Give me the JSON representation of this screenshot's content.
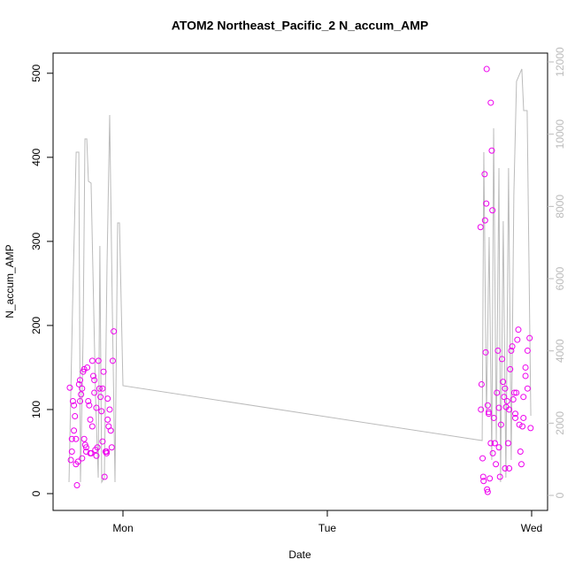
{
  "chart_data": {
    "type": "scatter",
    "title": "ATOM2 Northeast_Pacific_2 N_accum_AMP",
    "x_label": "Date",
    "y_label": "N_accum_AMP",
    "xlim": [
      0.658,
      3.078
    ],
    "xticks": [
      {
        "value": 1,
        "label": "Mon"
      },
      {
        "value": 2,
        "label": "Tue"
      },
      {
        "value": 3,
        "label": "Wed"
      }
    ],
    "ylim": [
      -20,
      524
    ],
    "yticks": [
      0,
      100,
      200,
      300,
      400,
      500
    ],
    "y2lim": [
      -416,
      12245
    ],
    "y2ticks": [
      0,
      2000,
      4000,
      6000,
      8000,
      10000,
      12000
    ],
    "y2_color": "#bbbbbb",
    "series": [
      {
        "type": "scatter",
        "color": "#ee00ee",
        "x": [
          0.74,
          0.745,
          0.75,
          0.75,
          0.755,
          0.76,
          0.765,
          0.77,
          0.775,
          0.78,
          0.785,
          0.79,
          0.795,
          0.8,
          0.805,
          0.81,
          0.815,
          0.82,
          0.825,
          0.83,
          0.835,
          0.84,
          0.845,
          0.85,
          0.855,
          0.86,
          0.865,
          0.87,
          0.875,
          0.88,
          0.885,
          0.89,
          0.895,
          0.9,
          0.905,
          0.91,
          0.915,
          0.92,
          0.925,
          0.93,
          0.935,
          0.94,
          0.945,
          0.95,
          0.955,
          0.79,
          0.76,
          0.8,
          0.84,
          0.86,
          0.87,
          0.9,
          0.92,
          0.925,
          0.85,
          0.82,
          0.77,
          0.81,
          2.75,
          2.752,
          2.755,
          2.76,
          2.763,
          2.765,
          2.77,
          2.772,
          2.775,
          2.778,
          2.78,
          2.782,
          2.785,
          2.79,
          2.795,
          2.8,
          2.805,
          2.808,
          2.81,
          2.815,
          2.82,
          2.825,
          2.83,
          2.835,
          2.84,
          2.845,
          2.85,
          2.855,
          2.86,
          2.865,
          2.87,
          2.875,
          2.88,
          2.885,
          2.89,
          2.895,
          2.9,
          2.905,
          2.91,
          2.915,
          2.92,
          2.925,
          2.93,
          2.935,
          2.94,
          2.945,
          2.95,
          2.955,
          2.96,
          2.97,
          2.98,
          2.99,
          2.995,
          2.98,
          2.97,
          2.785,
          2.79,
          2.8,
          2.84,
          2.87,
          2.89,
          2.92,
          2.96
        ],
        "values": [
          126,
          40,
          65,
          50,
          110,
          105,
          92,
          35,
          10,
          38,
          130,
          135,
          118,
          125,
          145,
          65,
          58,
          55,
          150,
          110,
          105,
          88,
          48,
          158,
          140,
          120,
          52,
          45,
          55,
          158,
          125,
          115,
          98,
          62,
          145,
          20,
          50,
          48,
          88,
          80,
          100,
          75,
          55,
          158,
          193,
          110,
          75,
          42,
          48,
          135,
          102,
          125,
          50,
          113,
          80,
          50,
          65,
          148,
          317,
          100,
          130,
          42,
          20,
          15,
          380,
          325,
          168,
          345,
          505,
          5,
          2,
          95,
          18,
          465,
          408,
          337,
          48,
          90,
          60,
          35,
          120,
          170,
          102,
          20,
          82,
          160,
          133,
          115,
          125,
          103,
          110,
          60,
          30,
          148,
          170,
          175,
          112,
          120,
          90,
          120,
          183,
          195,
          82,
          50,
          35,
          80,
          115,
          140,
          125,
          185,
          78,
          170,
          150,
          105,
          97,
          60,
          55,
          30,
          100,
          95,
          90
        ]
      },
      {
        "type": "line",
        "axis": "y2",
        "color": "#bbbbbb",
        "x": [
          0.736,
          0.753,
          0.771,
          0.784,
          0.792,
          0.805,
          0.814,
          0.823,
          0.831,
          0.844,
          0.866,
          0.879,
          0.887,
          0.896,
          0.909,
          0.922,
          0.935,
          0.948,
          0.961,
          0.974,
          0.983,
          1.0,
          2.758,
          2.766,
          2.779,
          2.792,
          2.805,
          2.814,
          2.827,
          2.84,
          2.848,
          2.861,
          2.874,
          2.887,
          2.9,
          2.913,
          2.926,
          2.952,
          2.961,
          2.978,
          2.996
        ],
        "values": [
          367,
          5143,
          9503,
          9503,
          367,
          4408,
          9870,
          9870,
          8695,
          8645,
          2694,
          490,
          6907,
          367,
          490,
          6368,
          10531,
          5143,
          367,
          7543,
          7543,
          3037,
          1518,
          9503,
          2204,
          7152,
          980,
          10164,
          1469,
          9062,
          367,
          7592,
          490,
          9062,
          980,
          8327,
          11462,
          11805,
          10654,
          10654,
          2204
        ]
      }
    ]
  }
}
